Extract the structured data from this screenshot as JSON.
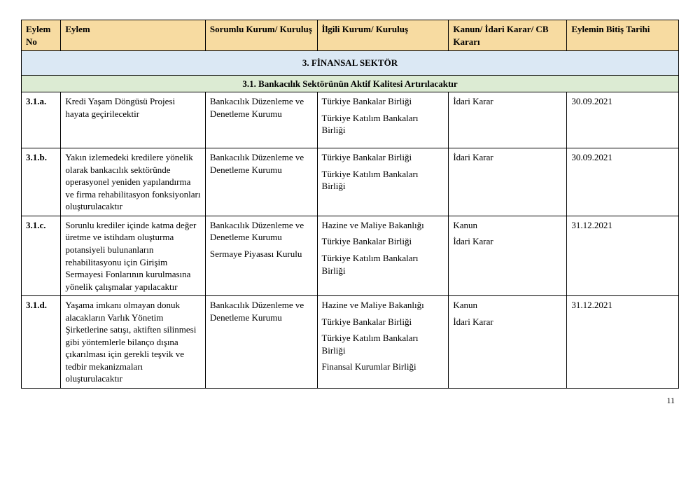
{
  "columns": {
    "no": "Eylem No",
    "eylem": "Eylem",
    "sorumlu": "Sorumlu Kurum/ Kuruluş",
    "ilgili": "İlgili Kurum/ Kuruluş",
    "kanun": "Kanun/ İdari Karar/ CB Kararı",
    "bitis": "Eylemin Bitiş Tarihi"
  },
  "section": "3.   FİNANSAL SEKTÖR",
  "subsection": "3.1. Bankacılık Sektörünün Aktif Kalitesi Artırılacaktır",
  "rows": [
    {
      "no": "3.1.a.",
      "eylem": "Kredi Yaşam Döngüsü Projesi hayata geçirilecektir",
      "sorumlu": [
        "Bankacılık Düzenleme ve Denetleme Kurumu"
      ],
      "ilgili": [
        "Türkiye Bankalar Birliği",
        "Türkiye Katılım Bankaları Birliği"
      ],
      "kanun": [
        "İdari Karar"
      ],
      "bitis": "30.09.2021"
    },
    {
      "no": "3.1.b.",
      "eylem": "Yakın izlemedeki kredilere yönelik olarak bankacılık sektöründe operasyonel yeniden yapılandırma ve firma rehabilitasyon fonksiyonları oluşturulacaktır",
      "sorumlu": [
        "Bankacılık Düzenleme ve Denetleme Kurumu"
      ],
      "ilgili": [
        "Türkiye Bankalar Birliği",
        "Türkiye Katılım Bankaları Birliği"
      ],
      "kanun": [
        "İdari Karar"
      ],
      "bitis": "30.09.2021"
    },
    {
      "no": "3.1.c.",
      "eylem": "Sorunlu krediler içinde katma değer üretme ve istihdam oluşturma potansiyeli bulunanların rehabilitasyonu için Girişim Sermayesi Fonlarının kurulmasına yönelik çalışmalar yapılacaktır",
      "sorumlu": [
        "Bankacılık Düzenleme ve Denetleme Kurumu",
        "Sermaye Piyasası Kurulu"
      ],
      "ilgili": [
        "Hazine ve Maliye Bakanlığı",
        "Türkiye Bankalar Birliği",
        "Türkiye Katılım Bankaları Birliği"
      ],
      "kanun": [
        "Kanun",
        "İdari Karar"
      ],
      "bitis": "31.12.2021"
    },
    {
      "no": "3.1.d.",
      "eylem": "Yaşama imkanı olmayan donuk alacakların Varlık Yönetim Şirketlerine satışı, aktiften silinmesi  gibi yöntemlerle bilanço dışına çıkarılması için gerekli teşvik ve tedbir mekanizmaları oluşturulacaktır",
      "sorumlu": [
        "Bankacılık Düzenleme ve Denetleme Kurumu"
      ],
      "ilgili": [
        "Hazine ve Maliye Bakanlığı",
        "Türkiye Bankalar Birliği",
        "Türkiye Katılım Bankaları Birliği",
        "Finansal Kurumlar Birliği"
      ],
      "kanun": [
        "Kanun",
        "İdari Karar"
      ],
      "bitis": "31.12.2021"
    }
  ],
  "page_number": "11",
  "colors": {
    "header_bg": "#f7dba1",
    "section_bg": "#dbe8f4",
    "subsection_bg": "#dcebd3",
    "border": "#000000",
    "text": "#000000",
    "page_bg": "#ffffff"
  }
}
